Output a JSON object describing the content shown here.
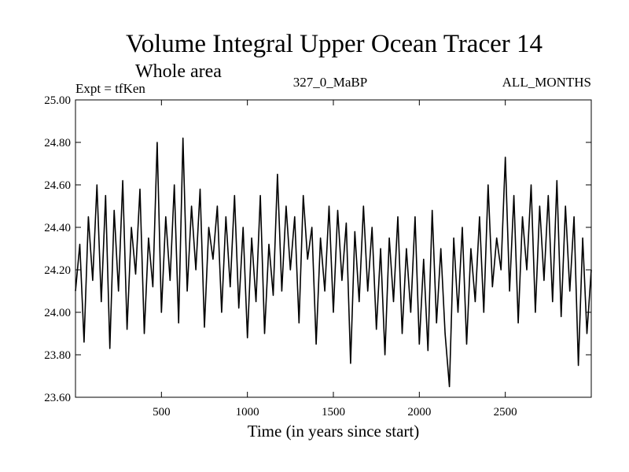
{
  "chart_data": {
    "type": "line",
    "title": "Volume Integral Upper Ocean Tracer 14",
    "subtitle": "Whole area",
    "left_note": "Expt = tfKen",
    "center_note": "327_0_MaBP",
    "right_note": "ALL_MONTHS",
    "xlabel": "Time (in years since start)",
    "ylabel": "",
    "xlim": [
      0,
      3000
    ],
    "ylim": [
      23.6,
      25.0
    ],
    "x_ticks": [
      500,
      1000,
      1500,
      2000,
      2500
    ],
    "x_tick_labels": [
      "500",
      "1000",
      "1500",
      "2000",
      "2500"
    ],
    "y_ticks": [
      23.6,
      23.8,
      24.0,
      24.2,
      24.4,
      24.6,
      24.8,
      25.0
    ],
    "y_tick_labels": [
      "23.60",
      "23.80",
      "24.00",
      "24.20",
      "24.40",
      "24.60",
      "24.80",
      "25.00"
    ],
    "grid": false,
    "line_color": "#000000",
    "series": [
      {
        "x": [
          0,
          25,
          50,
          75,
          100,
          125,
          150,
          175,
          200,
          225,
          250,
          275,
          300,
          325,
          350,
          375,
          400,
          425,
          450,
          475,
          500,
          525,
          550,
          575,
          600,
          625,
          650,
          675,
          700,
          725,
          750,
          775,
          800,
          825,
          850,
          875,
          900,
          925,
          950,
          975,
          1000,
          1025,
          1050,
          1075,
          1100,
          1125,
          1150,
          1175,
          1200,
          1225,
          1250,
          1275,
          1300,
          1325,
          1350,
          1375,
          1400,
          1425,
          1450,
          1475,
          1500,
          1525,
          1550,
          1575,
          1600,
          1625,
          1650,
          1675,
          1700,
          1725,
          1750,
          1775,
          1800,
          1825,
          1850,
          1875,
          1900,
          1925,
          1950,
          1975,
          2000,
          2025,
          2050,
          2075,
          2100,
          2125,
          2150,
          2175,
          2200,
          2225,
          2250,
          2275,
          2300,
          2325,
          2350,
          2375,
          2400,
          2425,
          2450,
          2475,
          2500,
          2525,
          2550,
          2575,
          2600,
          2625,
          2650,
          2675,
          2700,
          2725,
          2750,
          2775,
          2800,
          2825,
          2850,
          2875,
          2900,
          2925,
          2950,
          2975,
          3000
        ],
        "values": [
          24.1,
          24.32,
          23.86,
          24.45,
          24.15,
          24.6,
          24.05,
          24.55,
          23.83,
          24.48,
          24.1,
          24.62,
          23.92,
          24.4,
          24.18,
          24.58,
          23.9,
          24.35,
          24.12,
          24.8,
          24.0,
          24.45,
          24.15,
          24.6,
          23.95,
          24.82,
          24.1,
          24.5,
          24.2,
          24.58,
          23.93,
          24.4,
          24.25,
          24.5,
          24.0,
          24.45,
          24.12,
          24.55,
          24.02,
          24.4,
          23.88,
          24.35,
          24.05,
          24.55,
          23.9,
          24.32,
          24.08,
          24.65,
          24.1,
          24.5,
          24.2,
          24.45,
          23.95,
          24.55,
          24.25,
          24.4,
          23.85,
          24.35,
          24.1,
          24.5,
          24.0,
          24.48,
          24.15,
          24.42,
          23.76,
          24.38,
          24.05,
          24.5,
          24.1,
          24.4,
          23.92,
          24.3,
          23.8,
          24.35,
          24.05,
          24.45,
          23.9,
          24.3,
          24.0,
          24.45,
          23.85,
          24.25,
          23.82,
          24.48,
          23.95,
          24.3,
          23.9,
          23.65,
          24.35,
          24.0,
          24.4,
          23.85,
          24.3,
          24.05,
          24.45,
          24.0,
          24.6,
          24.12,
          24.35,
          24.2,
          24.73,
          24.1,
          24.55,
          23.95,
          24.45,
          24.2,
          24.6,
          24.0,
          24.5,
          24.15,
          24.55,
          24.05,
          24.62,
          23.98,
          24.5,
          24.1,
          24.45,
          23.75,
          24.35,
          23.9,
          24.2
        ]
      }
    ]
  }
}
